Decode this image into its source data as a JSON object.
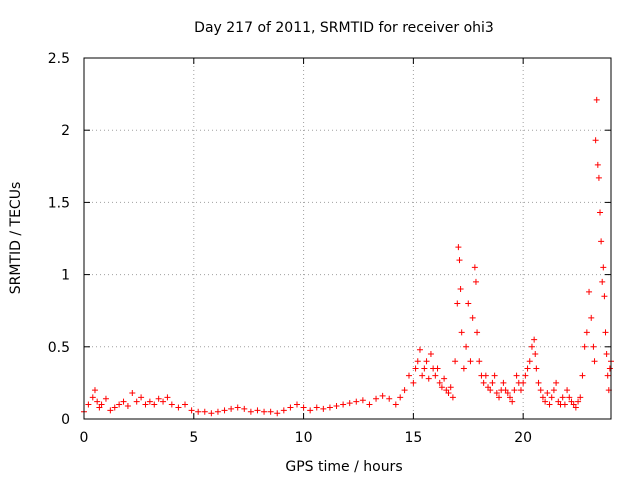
{
  "chart_data": {
    "type": "scatter",
    "title": "Day 217 of 2011, SRMTID for receiver ohi3",
    "xlabel": "GPS time / hours",
    "ylabel": "SRMTID / TECUs",
    "xlim": [
      0,
      24
    ],
    "ylim": [
      0,
      2.5
    ],
    "xticks": [
      0,
      5,
      10,
      15,
      20
    ],
    "yticks": [
      0,
      0.5,
      1,
      1.5,
      2,
      2.5
    ],
    "xtick_labels": [
      "0",
      "5",
      "10",
      "15",
      "20"
    ],
    "ytick_labels": [
      "0",
      "0.5",
      "1",
      "1.5",
      "2",
      "2.5"
    ],
    "grid": true,
    "marker": "plus",
    "series_color": "#ff0000",
    "series": [
      {
        "name": "SRMTID",
        "x": [
          0.0,
          0.2,
          0.4,
          0.5,
          0.6,
          0.7,
          0.8,
          1.0,
          1.2,
          1.4,
          1.6,
          1.8,
          2.0,
          2.2,
          2.4,
          2.6,
          2.8,
          3.0,
          3.2,
          3.4,
          3.6,
          3.8,
          4.0,
          4.3,
          4.6,
          4.9,
          5.2,
          5.5,
          5.8,
          6.1,
          6.4,
          6.7,
          7.0,
          7.3,
          7.6,
          7.9,
          8.2,
          8.5,
          8.8,
          9.1,
          9.4,
          9.7,
          10.0,
          10.3,
          10.6,
          10.9,
          11.2,
          11.5,
          11.8,
          12.1,
          12.4,
          12.7,
          13.0,
          13.3,
          13.6,
          13.9,
          14.2,
          14.4,
          14.6,
          14.8,
          15.0,
          15.1,
          15.2,
          15.3,
          15.4,
          15.5,
          15.6,
          15.7,
          15.8,
          15.9,
          16.0,
          16.1,
          16.2,
          16.3,
          16.4,
          16.5,
          16.6,
          16.7,
          16.8,
          16.9,
          17.0,
          17.05,
          17.1,
          17.15,
          17.2,
          17.3,
          17.4,
          17.5,
          17.6,
          17.7,
          17.8,
          17.85,
          17.9,
          18.0,
          18.1,
          18.2,
          18.3,
          18.4,
          18.5,
          18.6,
          18.7,
          18.8,
          18.9,
          19.0,
          19.1,
          19.2,
          19.3,
          19.4,
          19.5,
          19.6,
          19.7,
          19.8,
          19.9,
          20.0,
          20.1,
          20.2,
          20.3,
          20.4,
          20.5,
          20.55,
          20.6,
          20.7,
          20.8,
          20.9,
          21.0,
          21.1,
          21.2,
          21.3,
          21.4,
          21.5,
          21.6,
          21.7,
          21.8,
          21.9,
          22.0,
          22.1,
          22.2,
          22.3,
          22.4,
          22.5,
          22.6,
          22.7,
          22.8,
          22.9,
          23.0,
          23.1,
          23.2,
          23.25,
          23.3,
          23.35,
          23.4,
          23.45,
          23.5,
          23.55,
          23.6,
          23.65,
          23.7,
          23.75,
          23.8,
          23.85,
          23.9,
          23.95,
          24.0
        ],
        "y": [
          0.05,
          0.1,
          0.15,
          0.2,
          0.12,
          0.08,
          0.1,
          0.14,
          0.06,
          0.08,
          0.1,
          0.12,
          0.09,
          0.18,
          0.12,
          0.15,
          0.1,
          0.12,
          0.1,
          0.14,
          0.12,
          0.15,
          0.1,
          0.08,
          0.1,
          0.06,
          0.05,
          0.05,
          0.04,
          0.05,
          0.06,
          0.07,
          0.08,
          0.07,
          0.05,
          0.06,
          0.05,
          0.05,
          0.04,
          0.06,
          0.08,
          0.1,
          0.08,
          0.06,
          0.08,
          0.07,
          0.08,
          0.09,
          0.1,
          0.11,
          0.12,
          0.13,
          0.1,
          0.14,
          0.16,
          0.14,
          0.1,
          0.15,
          0.2,
          0.3,
          0.25,
          0.35,
          0.4,
          0.48,
          0.3,
          0.35,
          0.4,
          0.28,
          0.45,
          0.35,
          0.3,
          0.35,
          0.25,
          0.22,
          0.28,
          0.2,
          0.18,
          0.22,
          0.15,
          0.4,
          0.8,
          1.19,
          1.1,
          0.9,
          0.6,
          0.35,
          0.5,
          0.8,
          0.4,
          0.7,
          1.05,
          0.95,
          0.6,
          0.4,
          0.3,
          0.25,
          0.3,
          0.22,
          0.2,
          0.25,
          0.3,
          0.18,
          0.15,
          0.2,
          0.25,
          0.2,
          0.18,
          0.15,
          0.12,
          0.2,
          0.3,
          0.25,
          0.2,
          0.25,
          0.3,
          0.35,
          0.4,
          0.5,
          0.55,
          0.45,
          0.35,
          0.25,
          0.2,
          0.15,
          0.12,
          0.18,
          0.1,
          0.15,
          0.2,
          0.25,
          0.12,
          0.1,
          0.15,
          0.1,
          0.2,
          0.15,
          0.12,
          0.1,
          0.08,
          0.12,
          0.15,
          0.3,
          0.5,
          0.6,
          0.88,
          0.7,
          0.5,
          0.4,
          1.93,
          2.21,
          1.76,
          1.67,
          1.43,
          1.23,
          0.95,
          1.05,
          0.85,
          0.6,
          0.45,
          0.3,
          0.2,
          0.35,
          0.4
        ]
      }
    ]
  }
}
